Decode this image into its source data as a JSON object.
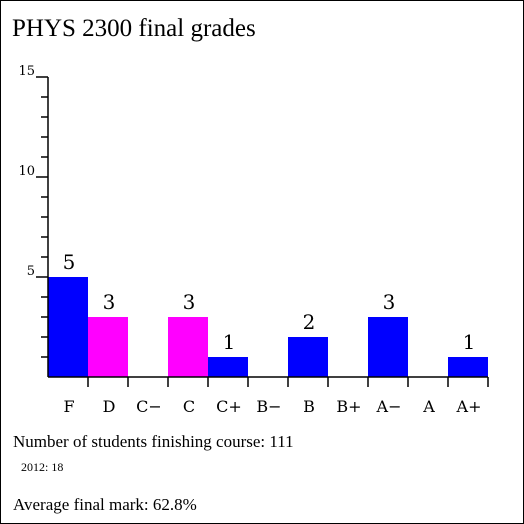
{
  "chart_data": {
    "type": "bar",
    "title": "PHYS 2300 final grades",
    "categories": [
      "F",
      "D",
      "C−",
      "C",
      "C+",
      "B−",
      "B",
      "B+",
      "A−",
      "A",
      "A+"
    ],
    "values": [
      5,
      3,
      0,
      3,
      1,
      0,
      2,
      0,
      3,
      0,
      1
    ],
    "value_labels": [
      "5",
      "3",
      "",
      "3",
      "1",
      "",
      "2",
      "",
      "3",
      "",
      "1"
    ],
    "bar_colors": [
      "#0000ff",
      "#ff00ff",
      "#0000ff",
      "#ff00ff",
      "#0000ff",
      "#0000ff",
      "#0000ff",
      "#0000ff",
      "#0000ff",
      "#0000ff",
      "#0000ff"
    ],
    "ylim": [
      0,
      15
    ],
    "yticks": [
      5,
      10,
      15
    ],
    "xlabel": "",
    "ylabel": "",
    "grid": false,
    "legend": "none"
  },
  "info": {
    "students_text": "Number of students finishing course: 111",
    "year_note": "2012: 18",
    "average_text": "Average final mark: 62.8%"
  }
}
